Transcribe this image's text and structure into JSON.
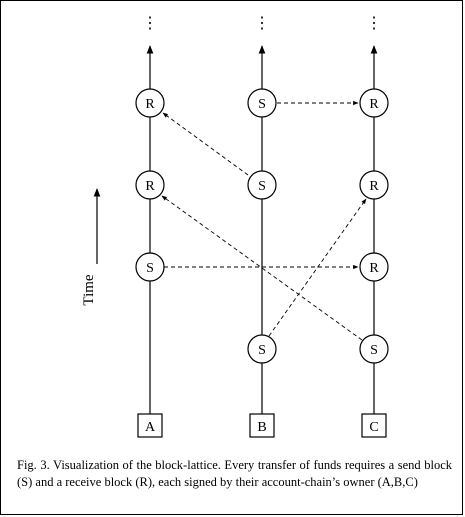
{
  "diagram": {
    "chains": [
      {
        "id": "A",
        "owner": "A",
        "blocks": [
          "S",
          "R",
          "R"
        ]
      },
      {
        "id": "B",
        "owner": "B",
        "blocks": [
          "S",
          "S",
          "S"
        ]
      },
      {
        "id": "C",
        "owner": "C",
        "blocks": [
          "S",
          "R",
          "R",
          "R"
        ]
      }
    ],
    "continuation": "⋮",
    "time_label": "Time",
    "transfers": [
      {
        "from": "A.S",
        "to": "C.R1"
      },
      {
        "from": "B.S2",
        "to": "A.R2"
      },
      {
        "from": "B.S3",
        "to": "C.R3"
      },
      {
        "from": "B.S1",
        "to": "C.R2"
      },
      {
        "from": "C.S",
        "to": "A.R1"
      }
    ]
  },
  "caption": {
    "text": "Fig. 3.  Visualization of the block-lattice. Every transfer of funds requires a send block (S) and a receive block (R), each signed by their account-chain’s owner (A,B,C)"
  }
}
